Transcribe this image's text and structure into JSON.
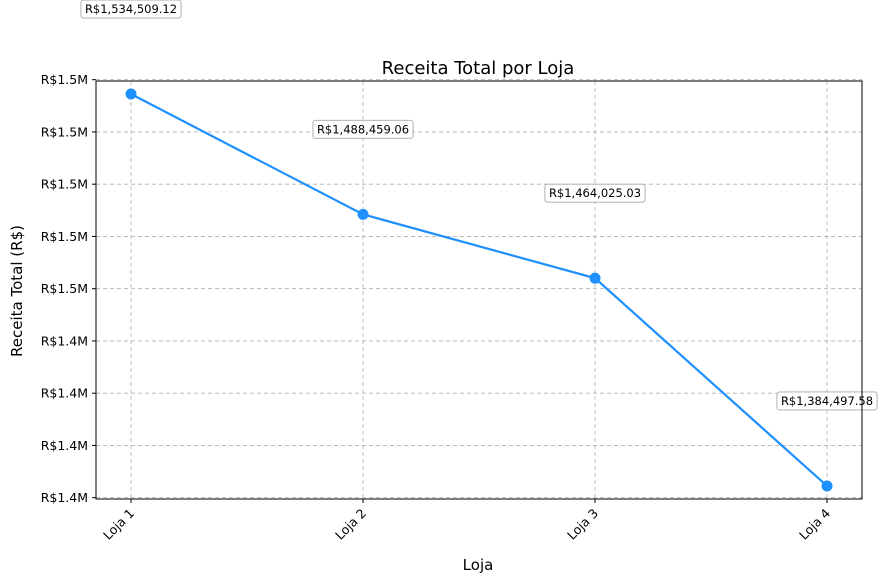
{
  "chart_data": {
    "type": "line",
    "title": "Receita Total por Loja",
    "xlabel": "Loja",
    "ylabel": "Receita Total (R$)",
    "categories": [
      "Loja 1",
      "Loja 2",
      "Loja 3",
      "Loja 4"
    ],
    "series": [
      {
        "values": [
          1534509.12,
          1488459.06,
          1464025.03,
          1384497.58
        ],
        "color": "#1e90ff"
      }
    ],
    "data_labels": [
      "R$1,534,509.12",
      "R$1,488,459.06",
      "R$1,464,025.03",
      "R$1,384,497.58"
    ],
    "ylim": [
      1379500,
      1539500
    ],
    "y_ticks": [
      1380000,
      1400000,
      1420000,
      1440000,
      1460000,
      1480000,
      1500000,
      1520000,
      1540000
    ],
    "y_tick_labels": [
      "R$1.4M",
      "R$1.4M",
      "R$1.4M",
      "R$1.4M",
      "R$1.5M",
      "R$1.5M",
      "R$1.5M",
      "R$1.5M",
      "R$1.5M"
    ],
    "grid": true,
    "legend": "none"
  }
}
